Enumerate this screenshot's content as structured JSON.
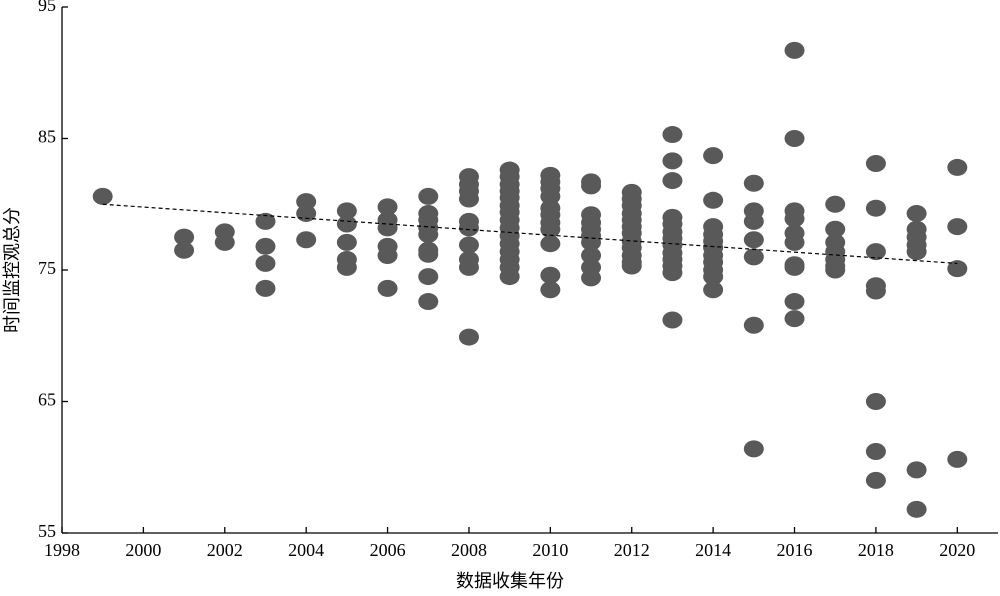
{
  "chart_data": {
    "type": "scatter",
    "xlabel": "数据收集年份",
    "ylabel": "时间监控观总分",
    "x": [
      1999,
      2001,
      2001,
      2002,
      2002,
      2003,
      2003,
      2003,
      2003,
      2004,
      2004,
      2004,
      2005,
      2005,
      2005,
      2005,
      2005,
      2006,
      2006,
      2006,
      2006,
      2006,
      2006,
      2007,
      2007,
      2007,
      2007,
      2007,
      2007,
      2007,
      2007,
      2007,
      2008,
      2008,
      2008,
      2008,
      2008,
      2008,
      2008,
      2008,
      2008,
      2008,
      2009,
      2009,
      2009,
      2009,
      2009,
      2009,
      2009,
      2009,
      2009,
      2009,
      2009,
      2009,
      2009,
      2009,
      2009,
      2010,
      2010,
      2010,
      2010,
      2010,
      2010,
      2010,
      2010,
      2010,
      2010,
      2010,
      2011,
      2011,
      2011,
      2011,
      2011,
      2011,
      2011,
      2011,
      2011,
      2011,
      2012,
      2012,
      2012,
      2012,
      2012,
      2012,
      2012,
      2012,
      2012,
      2012,
      2012,
      2012,
      2013,
      2013,
      2013,
      2013,
      2013,
      2013,
      2013,
      2013,
      2013,
      2013,
      2013,
      2013,
      2013,
      2014,
      2014,
      2014,
      2014,
      2014,
      2014,
      2014,
      2014,
      2014,
      2014,
      2014,
      2015,
      2015,
      2015,
      2015,
      2015,
      2015,
      2015,
      2016,
      2016,
      2016,
      2016,
      2016,
      2016,
      2016,
      2016,
      2016,
      2016,
      2017,
      2017,
      2017,
      2017,
      2017,
      2017,
      2017,
      2018,
      2018,
      2018,
      2018,
      2018,
      2018,
      2018,
      2018,
      2019,
      2019,
      2019,
      2019,
      2019,
      2019,
      2019,
      2020,
      2020,
      2020,
      2020
    ],
    "y": [
      80.6,
      77.5,
      76.5,
      77.9,
      77.1,
      78.7,
      76.8,
      75.5,
      73.6,
      80.2,
      79.3,
      77.3,
      79.5,
      78.5,
      77.1,
      75.8,
      75.2,
      79.8,
      78.8,
      78.2,
      76.8,
      76.1,
      73.6,
      80.6,
      79.3,
      78.8,
      78.2,
      77.7,
      76.5,
      76.2,
      74.5,
      72.6,
      82.1,
      81.5,
      81.0,
      80.4,
      78.7,
      78.2,
      76.9,
      75.8,
      75.2,
      69.9,
      82.6,
      82.1,
      81.5,
      81.0,
      80.5,
      79.9,
      79.4,
      78.8,
      78.2,
      77.6,
      77.0,
      76.4,
      75.8,
      75.2,
      74.5,
      82.2,
      81.7,
      81.2,
      80.6,
      79.7,
      79.2,
      78.6,
      78.1,
      77.0,
      74.6,
      73.5,
      81.7,
      81.4,
      79.2,
      78.6,
      78.1,
      77.6,
      77.1,
      76.1,
      75.2,
      74.4,
      80.9,
      80.4,
      79.9,
      79.3,
      78.8,
      78.3,
      77.8,
      77.2,
      76.7,
      76.1,
      75.6,
      75.3,
      85.3,
      83.3,
      81.8,
      79.0,
      78.5,
      77.9,
      77.4,
      76.9,
      76.3,
      75.8,
      75.3,
      74.8,
      71.2,
      83.7,
      80.3,
      78.3,
      77.7,
      77.2,
      76.7,
      76.1,
      75.6,
      75.0,
      74.5,
      73.5,
      81.6,
      79.5,
      78.7,
      77.3,
      76.0,
      70.8,
      61.4,
      91.7,
      85.0,
      79.5,
      78.9,
      77.8,
      77.1,
      75.4,
      75.2,
      72.6,
      71.3,
      80.0,
      78.1,
      77.1,
      76.4,
      75.8,
      75.3,
      75.0,
      83.1,
      79.7,
      76.4,
      73.8,
      73.4,
      65.0,
      61.2,
      59.0,
      79.3,
      78.1,
      77.5,
      76.9,
      76.4,
      59.8,
      56.8,
      82.8,
      78.3,
      75.1,
      60.6
    ],
    "color": "#595959",
    "trendline": {
      "x": [
        1999,
        2020
      ],
      "y": [
        80.0,
        75.5
      ],
      "color": "#000000"
    },
    "xlim": [
      1998,
      2021
    ],
    "ylim": [
      55,
      95
    ],
    "xticks": [
      1998,
      2000,
      2002,
      2004,
      2006,
      2008,
      2010,
      2012,
      2014,
      2016,
      2018,
      2020
    ],
    "yticks": [
      55,
      65,
      75,
      85,
      95
    ]
  }
}
